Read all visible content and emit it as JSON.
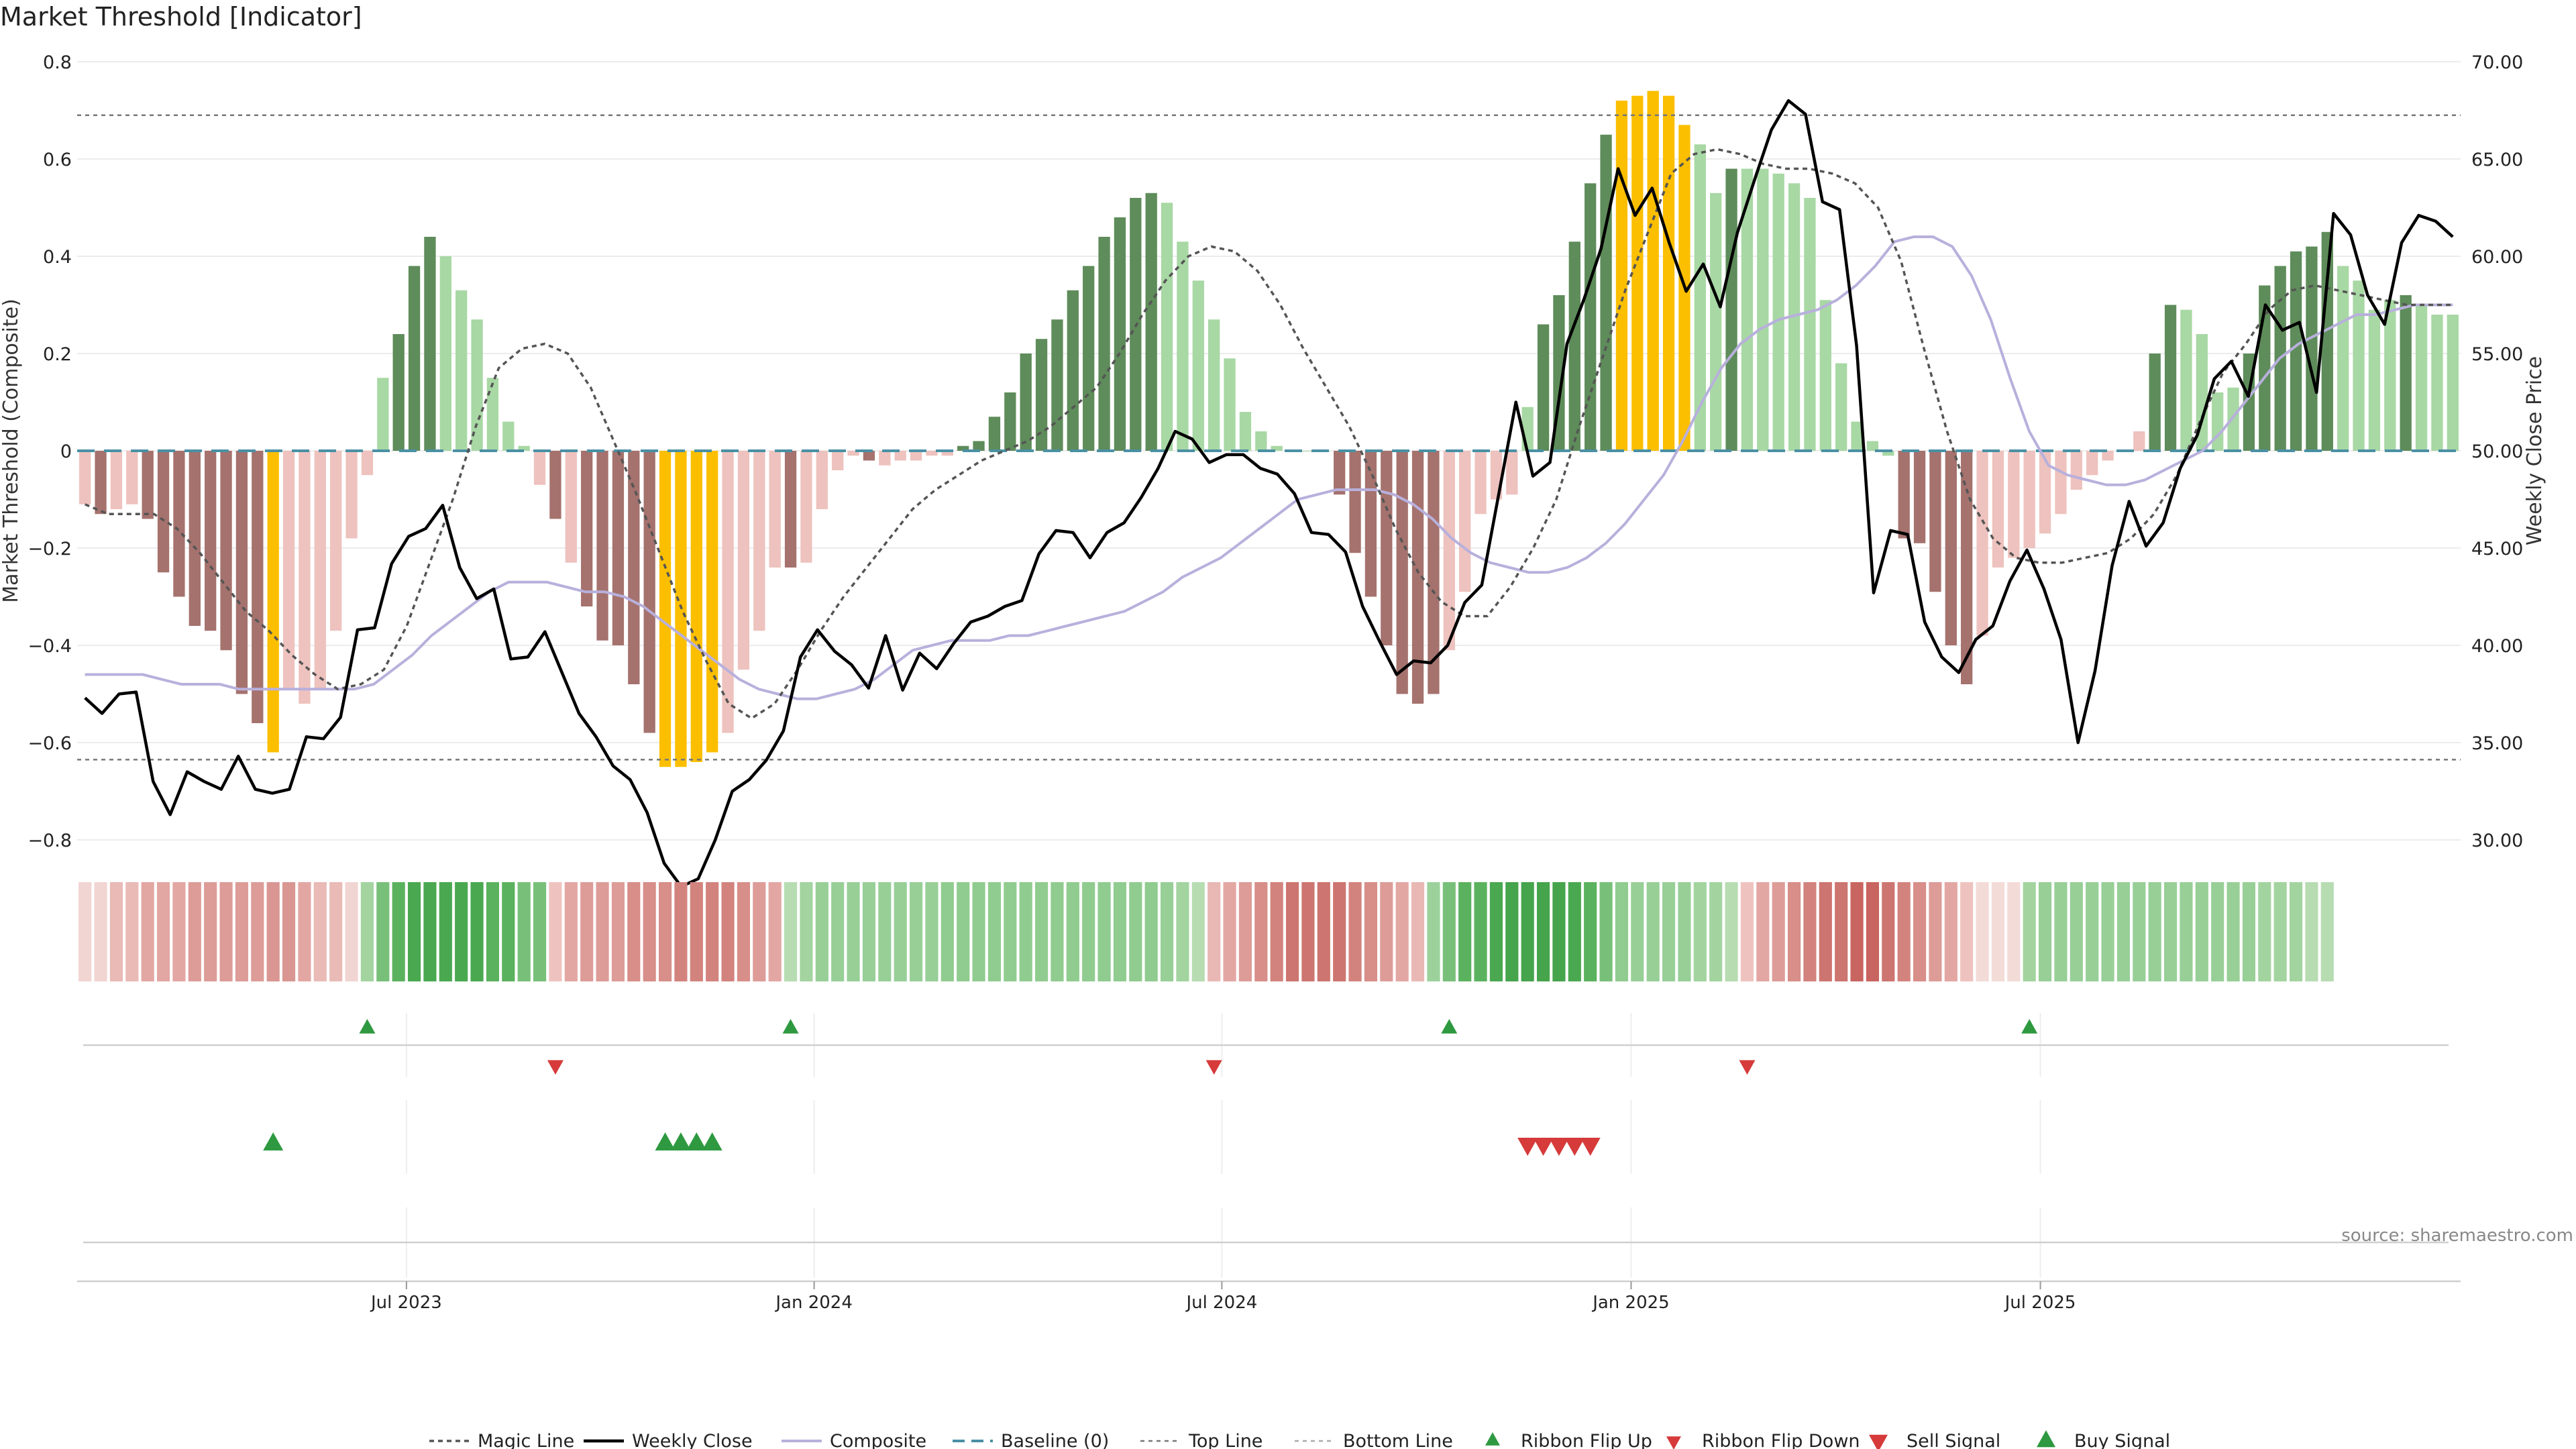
{
  "title": "Market Threshold [Indicator]",
  "source": "source: sharemaestro.com",
  "colors": {
    "bull_strong": "#5e8c5a",
    "bull_weak": "#a8d8a4",
    "bear_strong": "#a5726e",
    "bear_weak": "#eec2be",
    "extreme": "#fbbf00",
    "close_line": "#000000",
    "composite_line": "#b8b0dc",
    "magic_line": "#555555",
    "baseline": "#4a90a4",
    "signal_up": "#2e9940",
    "signal_down": "#d63a3a"
  },
  "chart_data": {
    "type": "bar",
    "ylabel_left": "Market Threshold (Composite)",
    "ylabel_right": "Weekly Close Price",
    "left_axis": {
      "range": [
        -0.8,
        0.8
      ],
      "ticks": [
        "0.8",
        "0.6",
        "0.4",
        "0.2",
        "0",
        "−0.2",
        "−0.4",
        "−0.6",
        "−0.8"
      ]
    },
    "right_axis": {
      "range": [
        30,
        70
      ],
      "ticks": [
        "70.00",
        "65.00",
        "60.00",
        "55.00",
        "50.00",
        "45.00",
        "40.00",
        "35.00",
        "30.00"
      ]
    },
    "x_ticks": [
      "Jul 2023",
      "Jan 2024",
      "Jul 2024",
      "Jan 2025",
      "Jul 2025"
    ],
    "top_line": 0.69,
    "bottom_line": -0.635,
    "bars": [
      -0.11,
      -0.13,
      -0.12,
      -0.11,
      -0.14,
      -0.25,
      -0.3,
      -0.36,
      -0.37,
      -0.41,
      -0.5,
      -0.56,
      -0.62,
      -0.49,
      -0.52,
      -0.49,
      -0.37,
      -0.18,
      -0.05,
      0.15,
      0.24,
      0.38,
      0.44,
      0.4,
      0.33,
      0.27,
      0.15,
      0.06,
      0.01,
      -0.07,
      -0.14,
      -0.23,
      -0.32,
      -0.39,
      -0.4,
      -0.48,
      -0.58,
      -0.65,
      -0.65,
      -0.64,
      -0.62,
      -0.58,
      -0.45,
      -0.37,
      -0.24,
      -0.24,
      -0.23,
      -0.12,
      -0.04,
      -0.01,
      -0.02,
      -0.03,
      -0.02,
      -0.02,
      -0.01,
      -0.01,
      0.01,
      0.02,
      0.07,
      0.12,
      0.2,
      0.23,
      0.27,
      0.33,
      0.38,
      0.44,
      0.48,
      0.52,
      0.53,
      0.51,
      0.43,
      0.35,
      0.27,
      0.19,
      0.08,
      0.04,
      0.01,
      0.0,
      0.0,
      0.0,
      -0.09,
      -0.21,
      -0.3,
      -0.4,
      -0.5,
      -0.52,
      -0.5,
      -0.41,
      -0.29,
      -0.13,
      -0.1,
      -0.09,
      0.09,
      0.26,
      0.32,
      0.43,
      0.55,
      0.65,
      0.72,
      0.73,
      0.74,
      0.73,
      0.67,
      0.63,
      0.53,
      0.58,
      0.58,
      0.58,
      0.57,
      0.55,
      0.52,
      0.31,
      0.18,
      0.06,
      0.02,
      -0.01,
      -0.18,
      -0.19,
      -0.29,
      -0.4,
      -0.48,
      -0.38,
      -0.24,
      -0.22,
      -0.2,
      -0.17,
      -0.13,
      -0.08,
      -0.05,
      -0.02,
      0.0,
      0.04,
      0.2,
      0.3,
      0.29,
      0.24,
      0.12,
      0.13,
      0.2,
      0.34,
      0.38,
      0.41,
      0.42,
      0.45,
      0.38,
      0.35,
      0.29,
      0.31,
      0.32,
      0.3,
      0.28,
      0.28
    ],
    "bar_styles": [
      "bw",
      "bs",
      "bw",
      "bw",
      "bs",
      "bs",
      "bs",
      "bs",
      "bs",
      "bs",
      "bs",
      "bs",
      "ex",
      "bw",
      "bw",
      "bw",
      "bw",
      "bw",
      "bw",
      "gw",
      "gs",
      "gs",
      "gs",
      "gw",
      "gw",
      "gw",
      "gw",
      "gw",
      "gw",
      "bw",
      "bs",
      "bw",
      "bs",
      "bs",
      "bs",
      "bs",
      "bs",
      "ex",
      "ex",
      "ex",
      "ex",
      "bw",
      "bw",
      "bw",
      "bw",
      "bs",
      "bw",
      "bw",
      "bw",
      "bw",
      "bs",
      "bw",
      "bw",
      "bw",
      "bw",
      "bw",
      "gs",
      "gs",
      "gs",
      "gs",
      "gs",
      "gs",
      "gs",
      "gs",
      "gs",
      "gs",
      "gs",
      "gs",
      "gs",
      "gw",
      "gw",
      "gw",
      "gw",
      "gw",
      "gw",
      "gw",
      "gw",
      "gw",
      "gw",
      "gw",
      "bs",
      "bs",
      "bs",
      "bs",
      "bs",
      "bs",
      "bs",
      "bw",
      "bw",
      "bw",
      "bw",
      "bw",
      "gw",
      "gs",
      "gs",
      "gs",
      "gs",
      "gs",
      "ex",
      "ex",
      "ex",
      "ex",
      "ex",
      "gw",
      "gw",
      "gs",
      "gw",
      "gw",
      "gw",
      "gw",
      "gw",
      "gw",
      "gw",
      "gw",
      "gw",
      "gw",
      "bs",
      "bs",
      "bs",
      "bs",
      "bs",
      "bw",
      "bw",
      "bw",
      "bw",
      "bw",
      "bw",
      "bw",
      "bw",
      "bw",
      "bw",
      "bw",
      "gs",
      "gs",
      "gw",
      "gw",
      "gw",
      "gw",
      "gs",
      "gs",
      "gs",
      "gs",
      "gs",
      "gs",
      "gw",
      "gw",
      "gw",
      "gw",
      "gs",
      "gw",
      "gw",
      "gw"
    ],
    "weekly_close": [
      37.3,
      36.5,
      37.5,
      37.6,
      33.0,
      31.3,
      33.5,
      33.0,
      32.6,
      34.3,
      32.6,
      32.4,
      32.6,
      35.3,
      35.2,
      36.3,
      40.8,
      40.9,
      44.2,
      45.6,
      46.0,
      47.2,
      44.0,
      42.4,
      42.9,
      39.3,
      39.4,
      40.7,
      38.6,
      36.5,
      35.3,
      33.8,
      33.1,
      31.4,
      28.8,
      27.6,
      28.0,
      30.0,
      32.5,
      33.1,
      34.1,
      35.6,
      39.4,
      40.8,
      39.7,
      39.0,
      37.8,
      40.5,
      37.7,
      39.6,
      38.8,
      40.1,
      41.2,
      41.5,
      42.0,
      42.3,
      44.7,
      45.9,
      45.8,
      44.5,
      45.8,
      46.3,
      47.6,
      49.1,
      51.0,
      50.6,
      49.4,
      49.8,
      49.8,
      49.1,
      48.8,
      47.8,
      45.8,
      45.7,
      44.8,
      42.0,
      40.2,
      38.5,
      39.2,
      39.1,
      40.0,
      42.2,
      43.1,
      47.8,
      52.5,
      48.7,
      49.4,
      55.5,
      57.8,
      60.4,
      64.5,
      62.1,
      63.5,
      60.7,
      58.2,
      59.6,
      57.4,
      61.2,
      63.9,
      66.5,
      68.0,
      67.3,
      62.8,
      62.4,
      55.4,
      42.7,
      45.9,
      45.7,
      41.2,
      39.4,
      38.6,
      40.3,
      41.0,
      43.3,
      44.9,
      42.9,
      40.3,
      35.0,
      38.7,
      44.1,
      47.4,
      45.1,
      46.3,
      49.1,
      50.8,
      53.7,
      54.6,
      52.8,
      57.5,
      56.2,
      56.6,
      53.0,
      62.2,
      61.1,
      58.0,
      56.5,
      60.7,
      62.1,
      61.8,
      61.0
    ],
    "composite": [
      -0.46,
      -0.46,
      -0.46,
      -0.46,
      -0.47,
      -0.48,
      -0.48,
      -0.48,
      -0.49,
      -0.49,
      -0.49,
      -0.49,
      -0.49,
      -0.49,
      -0.49,
      -0.48,
      -0.45,
      -0.42,
      -0.38,
      -0.35,
      -0.32,
      -0.29,
      -0.27,
      -0.27,
      -0.27,
      -0.28,
      -0.29,
      -0.29,
      -0.3,
      -0.32,
      -0.35,
      -0.38,
      -0.41,
      -0.44,
      -0.47,
      -0.49,
      -0.5,
      -0.51,
      -0.51,
      -0.5,
      -0.49,
      -0.47,
      -0.44,
      -0.41,
      -0.4,
      -0.39,
      -0.39,
      -0.39,
      -0.38,
      -0.38,
      -0.37,
      -0.36,
      -0.35,
      -0.34,
      -0.33,
      -0.31,
      -0.29,
      -0.26,
      -0.24,
      -0.22,
      -0.19,
      -0.16,
      -0.13,
      -0.1,
      -0.09,
      -0.08,
      -0.08,
      -0.08,
      -0.09,
      -0.11,
      -0.14,
      -0.18,
      -0.21,
      -0.23,
      -0.24,
      -0.25,
      -0.25,
      -0.24,
      -0.22,
      -0.19,
      -0.15,
      -0.1,
      -0.05,
      0.02,
      0.1,
      0.17,
      0.22,
      0.25,
      0.27,
      0.28,
      0.29,
      0.31,
      0.34,
      0.38,
      0.43,
      0.44,
      0.44,
      0.42,
      0.36,
      0.27,
      0.15,
      0.04,
      -0.03,
      -0.05,
      -0.06,
      -0.07,
      -0.07,
      -0.06,
      -0.04,
      -0.02,
      0.0,
      0.04,
      0.09,
      0.14,
      0.19,
      0.22,
      0.24,
      0.26,
      0.28,
      0.28,
      0.29,
      0.3,
      0.3,
      0.3
    ],
    "magic": [
      -0.11,
      -0.13,
      -0.13,
      -0.13,
      -0.16,
      -0.21,
      -0.27,
      -0.33,
      -0.37,
      -0.42,
      -0.46,
      -0.49,
      -0.48,
      -0.45,
      -0.36,
      -0.23,
      -0.1,
      0.05,
      0.17,
      0.21,
      0.22,
      0.2,
      0.13,
      0.02,
      -0.09,
      -0.21,
      -0.33,
      -0.43,
      -0.52,
      -0.55,
      -0.52,
      -0.45,
      -0.37,
      -0.3,
      -0.24,
      -0.18,
      -0.12,
      -0.08,
      -0.05,
      -0.02,
      0.0,
      0.02,
      0.05,
      0.09,
      0.13,
      0.2,
      0.28,
      0.35,
      0.4,
      0.42,
      0.41,
      0.37,
      0.3,
      0.21,
      0.13,
      0.05,
      -0.05,
      -0.16,
      -0.25,
      -0.31,
      -0.34,
      -0.34,
      -0.28,
      -0.2,
      -0.1,
      0.05,
      0.19,
      0.33,
      0.45,
      0.57,
      0.61,
      0.62,
      0.61,
      0.59,
      0.58,
      0.58,
      0.57,
      0.55,
      0.5,
      0.39,
      0.21,
      0.04,
      -0.1,
      -0.18,
      -0.22,
      -0.23,
      -0.23,
      -0.22,
      -0.21,
      -0.18,
      -0.13,
      -0.05,
      0.06,
      0.16,
      0.22,
      0.29,
      0.33,
      0.34,
      0.33,
      0.32,
      0.31,
      0.3,
      0.3,
      0.3
    ],
    "baseline": 0,
    "ribbon": [
      [
        "#f1d5d2",
        "#f1d5d2",
        "#e9bab6",
        "#e9bab6",
        "#e3a7a3",
        "#e3a7a3",
        "#e3a7a3",
        "#dd9c98",
        "#dd9c98",
        "#dd9c98",
        "#dd9c98",
        "#dd9c98",
        "#d99692",
        "#d99692",
        "#e3a7a3",
        "#e9bab6",
        "#e9bab6",
        "#f1d5d2"
      ],
      [
        "#a3d4a0",
        "#78c07a",
        "#5bb25e",
        "#4aa851",
        "#4aa851",
        "#4aa851",
        "#4aa851",
        "#4aa851",
        "#5bb25e",
        "#5bb25e",
        "#78c07a",
        "#78c07a"
      ],
      [
        "#eec3bf",
        "#e3a7a3",
        "#dd9c98",
        "#dd9c98",
        "#dd9c98",
        "#d88e89",
        "#d88e89",
        "#d88e89",
        "#d3837e",
        "#d3837e",
        "#d3837e",
        "#d3837e",
        "#d88e89",
        "#dd9c98",
        "#e3a7a3"
      ],
      [
        "#b7dcb2",
        "#a3d4a0",
        "#98cf97",
        "#98cf97",
        "#98cf97",
        "#98cf97",
        "#98cf97",
        "#98cf97",
        "#98cf97",
        "#98cf97",
        "#90cc8f",
        "#90cc8f",
        "#90cc8f",
        "#90cc8f",
        "#90cc8f",
        "#90cc8f",
        "#90cc8f",
        "#90cc8f",
        "#90cc8f",
        "#90cc8f",
        "#90cc8f",
        "#90cc8f",
        "#90cc8f",
        "#90cc8f",
        "#98cf97",
        "#a3d4a0",
        "#b7dcb2"
      ],
      [
        "#e9b8b4",
        "#e3a7a3",
        "#dd9c98",
        "#d88e89",
        "#d3837e",
        "#cd7570",
        "#cd7570",
        "#cd7570",
        "#cd7570",
        "#d3837e",
        "#d88e89",
        "#dd9c98",
        "#e3a7a3",
        "#e9b8b4"
      ],
      [
        "#9cd19b",
        "#78c07a",
        "#5bb25e",
        "#5bb25e",
        "#4aa851",
        "#45a44c",
        "#45a44c",
        "#45a44c",
        "#45a44c",
        "#4aa851",
        "#5bb25e",
        "#78c07a",
        "#90cc8f",
        "#98cf97",
        "#98cf97",
        "#98cf97",
        "#98cf97",
        "#a3d4a0",
        "#a3d4a0",
        "#b7dcb2"
      ],
      [
        "#eec3bf",
        "#e3a7a3",
        "#dd9c98",
        "#d88e89",
        "#d3837e",
        "#cd7570",
        "#cd7570",
        "#c96560",
        "#c96560",
        "#cd7570",
        "#d3837e",
        "#d88e89",
        "#dd9c98",
        "#e3a7a3",
        "#eec3bf",
        "#f3dbd8",
        "#f3dbd8",
        "#f3dbd8"
      ],
      [
        "#a3d4a0",
        "#98cf97",
        "#98cf97",
        "#98cf97",
        "#98cf97",
        "#98cf97",
        "#98cf97",
        "#98cf97",
        "#98cf97",
        "#98cf97",
        "#98cf97",
        "#98cf97",
        "#98cf97",
        "#98cf97",
        "#98cf97",
        "#a3d4a0",
        "#a3d4a0",
        "#a3d4a0",
        "#b7dcb2",
        "#b7dcb2"
      ]
    ],
    "ribbon_flip_up_weeks": [
      18,
      45,
      87,
      124
    ],
    "ribbon_flip_down_weeks": [
      30,
      72,
      106
    ],
    "buy_signal_weeks": [
      12,
      37,
      38,
      39,
      40
    ],
    "sell_signal_weeks": [
      92,
      93,
      94,
      95,
      96
    ],
    "legend": [
      "Magic Line",
      "Weekly Close",
      "Composite",
      "Baseline (0)",
      "Top Line",
      "Bottom Line",
      "Ribbon Flip Up",
      "Ribbon Flip Down",
      "Sell Signal",
      "Buy Signal"
    ]
  }
}
